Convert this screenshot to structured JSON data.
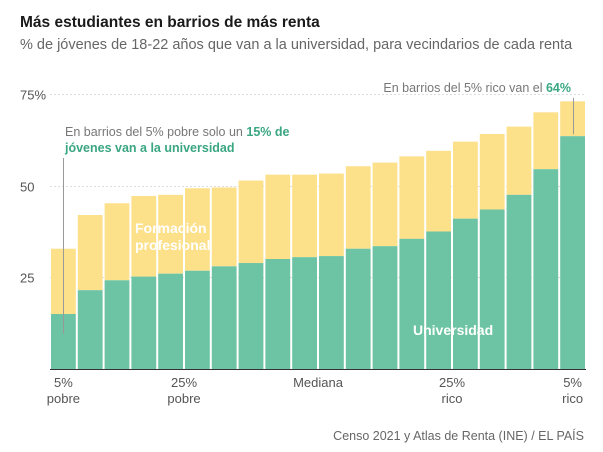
{
  "header": {
    "title": "Más estudiantes en barrios de más renta",
    "subtitle": "% de jóvenes de 18-22 años que van a la universidad, para vecindarios de cada renta"
  },
  "footer": {
    "source": "Censo 2021 y Atlas de Renta (INE) / EL PAÍS"
  },
  "colors": {
    "universidad": "#6cc4a4",
    "formacion_profesional": "#fde08a",
    "annotation_green": "#3aa682",
    "annotation_text": "#777777"
  },
  "annotations": {
    "low": {
      "pre": "En barrios del 5% pobre solo un ",
      "highlight": "15% de",
      "line2": "jóvenes van a la universidad"
    },
    "high": {
      "pre": "En barrios del 5% rico van el ",
      "highlight": "64%"
    }
  },
  "chart_data": {
    "type": "bar",
    "stacked": true,
    "title": "Más estudiantes en barrios de más renta",
    "subtitle": "% de jóvenes de 18-22 años que van a la universidad, para vecindarios de cada renta",
    "ylim": [
      0,
      75
    ],
    "yticks": [
      {
        "value": 25,
        "label": "25"
      },
      {
        "value": 50,
        "label": "50"
      },
      {
        "value": 75,
        "label": "75%"
      }
    ],
    "xticks": [
      {
        "index": 0,
        "lines": [
          "5%",
          "pobre"
        ]
      },
      {
        "index": 4.5,
        "lines": [
          "25%",
          "pobre"
        ]
      },
      {
        "index": 9.5,
        "lines": [
          "Mediana"
        ]
      },
      {
        "index": 14.5,
        "lines": [
          "25%",
          "rico"
        ]
      },
      {
        "index": 19,
        "lines": [
          "5%",
          "rico"
        ]
      }
    ],
    "grid": true,
    "series": [
      {
        "name": "Universidad",
        "color": "#6cc4a4",
        "values": [
          15,
          21.5,
          24.2,
          25.2,
          26,
          26.8,
          28,
          28.9,
          30,
          30.5,
          30.8,
          32.8,
          33.5,
          35.5,
          37.5,
          41,
          43.5,
          47.5,
          54.5,
          63.5
        ]
      },
      {
        "name": "Formación profesional",
        "color": "#fde08a",
        "values": [
          17.8,
          20.5,
          21,
          22,
          21.5,
          22.5,
          21.5,
          22.5,
          23,
          22.5,
          22.5,
          22.5,
          22.8,
          22.5,
          22,
          21,
          20.6,
          18.6,
          15.5,
          9.5
        ]
      }
    ],
    "series_labels": [
      {
        "series": "Formación profesional",
        "lines": [
          "Formación",
          "profesional"
        ]
      },
      {
        "series": "Universidad",
        "lines": [
          "Universidad"
        ]
      }
    ]
  }
}
